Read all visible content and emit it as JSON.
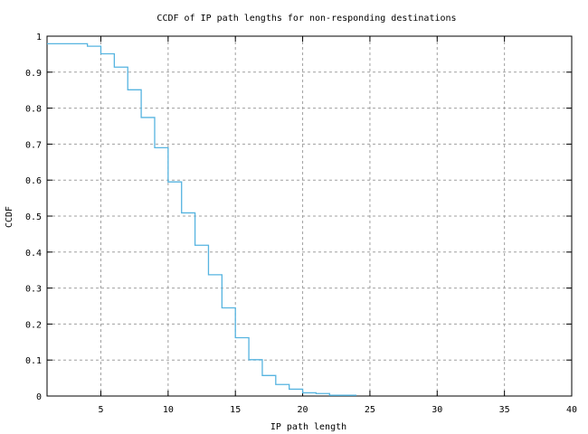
{
  "chart_data": {
    "type": "line",
    "subtype": "step",
    "title": "CCDF of IP path lengths for non-responding destinations",
    "xlabel": "IP path length",
    "ylabel": "CCDF",
    "xlim": [
      1,
      40
    ],
    "ylim": [
      0,
      1
    ],
    "xticks": [
      5,
      10,
      15,
      20,
      25,
      30,
      35,
      40
    ],
    "yticks": [
      0,
      0.1,
      0.2,
      0.3,
      0.4,
      0.5,
      0.6,
      0.7,
      0.8,
      0.9,
      1
    ],
    "ytick_labels": [
      "0",
      "0.1",
      "0.2",
      "0.3",
      "0.4",
      "0.5",
      "0.6",
      "0.7",
      "0.8",
      "0.9",
      "1"
    ],
    "xtick_labels": [
      "5",
      "10",
      "15",
      "20",
      "25",
      "30",
      "35",
      "40"
    ],
    "grid": true,
    "legend": null,
    "series": [
      {
        "name": "CCDF",
        "color": "#56b4e0",
        "x": [
          1,
          4,
          5,
          6,
          7,
          8,
          9,
          10,
          11,
          12,
          13,
          14,
          15,
          16,
          17,
          18,
          19,
          20,
          21,
          22,
          24
        ],
        "y": [
          0.979,
          0.972,
          0.951,
          0.914,
          0.851,
          0.774,
          0.69,
          0.595,
          0.509,
          0.419,
          0.337,
          0.245,
          0.162,
          0.101,
          0.057,
          0.032,
          0.019,
          0.009,
          0.007,
          0.002,
          0.002
        ]
      }
    ]
  }
}
